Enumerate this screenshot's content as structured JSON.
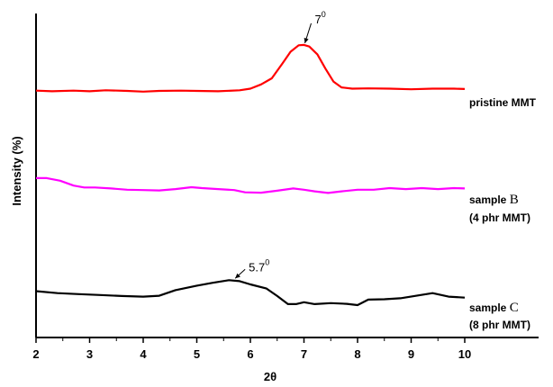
{
  "chart_data": {
    "type": "line",
    "xlabel": "2θ",
    "ylabel": "Intensity (%)",
    "xlim": [
      2,
      10
    ],
    "x_ticks": [
      "2",
      "3",
      "4",
      "5",
      "6",
      "7",
      "8",
      "9",
      "10"
    ],
    "y_ticks": [],
    "grid": false,
    "series": [
      {
        "name": "pristine MMT",
        "label_lines": [
          "pristine MMT"
        ],
        "color": "#ff0000",
        "points": [
          [
            2.0,
            0.762
          ],
          [
            2.3,
            0.76
          ],
          [
            2.7,
            0.762
          ],
          [
            3.0,
            0.76
          ],
          [
            3.3,
            0.763
          ],
          [
            3.7,
            0.761
          ],
          [
            4.0,
            0.759
          ],
          [
            4.3,
            0.761
          ],
          [
            4.7,
            0.762
          ],
          [
            5.0,
            0.761
          ],
          [
            5.4,
            0.76
          ],
          [
            5.8,
            0.763
          ],
          [
            6.0,
            0.768
          ],
          [
            6.2,
            0.781
          ],
          [
            6.4,
            0.8
          ],
          [
            6.6,
            0.846
          ],
          [
            6.75,
            0.882
          ],
          [
            6.9,
            0.902
          ],
          [
            7.0,
            0.903
          ],
          [
            7.1,
            0.898
          ],
          [
            7.25,
            0.874
          ],
          [
            7.4,
            0.83
          ],
          [
            7.55,
            0.79
          ],
          [
            7.7,
            0.772
          ],
          [
            7.9,
            0.768
          ],
          [
            8.2,
            0.769
          ],
          [
            8.6,
            0.768
          ],
          [
            9.0,
            0.766
          ],
          [
            9.4,
            0.768
          ],
          [
            9.8,
            0.768
          ],
          [
            10.0,
            0.767
          ]
        ]
      },
      {
        "name": "sample B (4 phr MMT)",
        "label_lines": [
          "sample ",
          "B",
          "(4 phr MMT)"
        ],
        "color": "#ff00ff",
        "points": [
          [
            2.0,
            0.492
          ],
          [
            2.2,
            0.492
          ],
          [
            2.45,
            0.484
          ],
          [
            2.7,
            0.469
          ],
          [
            2.9,
            0.463
          ],
          [
            3.1,
            0.463
          ],
          [
            3.4,
            0.46
          ],
          [
            3.7,
            0.456
          ],
          [
            4.0,
            0.455
          ],
          [
            4.3,
            0.454
          ],
          [
            4.6,
            0.458
          ],
          [
            4.9,
            0.464
          ],
          [
            5.1,
            0.461
          ],
          [
            5.4,
            0.458
          ],
          [
            5.7,
            0.455
          ],
          [
            5.9,
            0.448
          ],
          [
            6.2,
            0.447
          ],
          [
            6.5,
            0.453
          ],
          [
            6.8,
            0.46
          ],
          [
            7.0,
            0.456
          ],
          [
            7.2,
            0.451
          ],
          [
            7.45,
            0.446
          ],
          [
            7.7,
            0.451
          ],
          [
            8.0,
            0.456
          ],
          [
            8.3,
            0.456
          ],
          [
            8.6,
            0.461
          ],
          [
            8.9,
            0.458
          ],
          [
            9.2,
            0.461
          ],
          [
            9.5,
            0.458
          ],
          [
            9.8,
            0.461
          ],
          [
            10.0,
            0.46
          ]
        ]
      },
      {
        "name": "sample C (8 phr MMT)",
        "label_lines": [
          "sample ",
          "C",
          "(8 phr MMT)"
        ],
        "color": "#000000",
        "points": [
          [
            2.0,
            0.143
          ],
          [
            2.4,
            0.137
          ],
          [
            2.8,
            0.134
          ],
          [
            3.2,
            0.131
          ],
          [
            3.6,
            0.128
          ],
          [
            4.0,
            0.126
          ],
          [
            4.3,
            0.129
          ],
          [
            4.6,
            0.146
          ],
          [
            5.0,
            0.16
          ],
          [
            5.3,
            0.169
          ],
          [
            5.6,
            0.177
          ],
          [
            5.8,
            0.174
          ],
          [
            6.0,
            0.164
          ],
          [
            6.3,
            0.151
          ],
          [
            6.5,
            0.128
          ],
          [
            6.7,
            0.103
          ],
          [
            6.85,
            0.103
          ],
          [
            7.0,
            0.109
          ],
          [
            7.2,
            0.103
          ],
          [
            7.5,
            0.106
          ],
          [
            7.8,
            0.104
          ],
          [
            8.0,
            0.1
          ],
          [
            8.2,
            0.117
          ],
          [
            8.5,
            0.118
          ],
          [
            8.8,
            0.121
          ],
          [
            9.1,
            0.129
          ],
          [
            9.4,
            0.137
          ],
          [
            9.7,
            0.126
          ],
          [
            10.0,
            0.123
          ]
        ]
      }
    ],
    "annotations": [
      {
        "text": "7",
        "sup": "0",
        "x": 7.0,
        "y": 0.903,
        "series": "pristine MMT"
      },
      {
        "text": "5.7",
        "sup": "0",
        "x": 5.7,
        "y": 0.177,
        "series": "sample C"
      }
    ]
  }
}
